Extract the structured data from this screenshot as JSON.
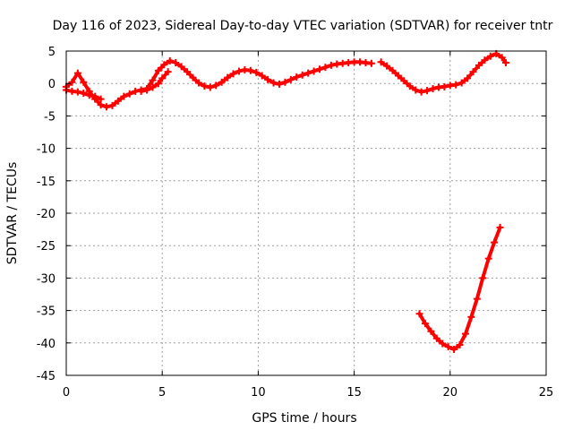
{
  "chart_data": {
    "type": "scatter",
    "title": "Day 116 of 2023, Sidereal Day-to-day VTEC variation (SDTVAR) for receiver tntr",
    "xlabel": "GPS time / hours",
    "ylabel": "SDTVAR / TECUs",
    "xlim": [
      0,
      25
    ],
    "ylim": [
      -45,
      5
    ],
    "x_ticks": [
      0,
      5,
      10,
      15,
      20,
      25
    ],
    "y_ticks": [
      5,
      0,
      -5,
      -10,
      -15,
      -20,
      -25,
      -30,
      -35,
      -40,
      -45
    ],
    "grid": true,
    "legend": "none",
    "series_color": "#ff0000",
    "series": [
      {
        "x": [
          0.0,
          0.3,
          0.6,
          0.9,
          1.2,
          1.5,
          1.8,
          2.1,
          2.4,
          2.7,
          3.0,
          3.3,
          3.6,
          3.9,
          4.2,
          4.5,
          4.8,
          5.1,
          5.4,
          5.7,
          6.0,
          6.3,
          6.6,
          6.9,
          7.2,
          7.5,
          7.8,
          8.1,
          8.4,
          8.7,
          9.0,
          9.3,
          9.6,
          9.9,
          10.2,
          10.5,
          10.8,
          11.1,
          11.4,
          11.7,
          12.0,
          12.3,
          12.6,
          12.9,
          13.2,
          13.5,
          13.8,
          14.1,
          14.4,
          14.7,
          15.0,
          15.3,
          15.6,
          15.9
        ],
        "y": [
          -0.5,
          0.2,
          1.6,
          0.2,
          -1.2,
          -2.4,
          -3.3,
          -3.6,
          -3.4,
          -2.7,
          -2.0,
          -1.6,
          -1.2,
          -1.0,
          -0.8,
          0.5,
          2.0,
          2.9,
          3.5,
          3.2,
          2.6,
          1.8,
          0.9,
          0.1,
          -0.4,
          -0.6,
          -0.3,
          0.2,
          0.9,
          1.5,
          1.9,
          2.1,
          2.0,
          1.7,
          1.2,
          0.6,
          0.1,
          -0.1,
          0.2,
          0.6,
          1.0,
          1.3,
          1.6,
          1.9,
          2.2,
          2.5,
          2.8,
          3.0,
          3.1,
          3.2,
          3.3,
          3.3,
          3.2,
          3.1
        ]
      },
      {
        "x": [
          0.0,
          0.3,
          0.6,
          0.9,
          1.2,
          1.5,
          1.8
        ],
        "y": [
          -1.0,
          -1.2,
          -1.3,
          -1.5,
          -1.8,
          -2.0,
          -2.4
        ]
      },
      {
        "x": [
          3.9,
          4.2,
          4.5,
          4.8,
          5.0,
          5.3
        ],
        "y": [
          -1.2,
          -1.0,
          -0.6,
          0.0,
          0.8,
          1.8
        ]
      },
      {
        "x": [
          16.4,
          16.7,
          17.0,
          17.3,
          17.6,
          17.9,
          18.2,
          18.5,
          18.8,
          19.1,
          19.4,
          19.7,
          20.0,
          20.3,
          20.6,
          20.9,
          21.2,
          21.5,
          21.8,
          22.1,
          22.4,
          22.7,
          22.9
        ],
        "y": [
          3.3,
          2.7,
          2.0,
          1.2,
          0.4,
          -0.4,
          -1.0,
          -1.3,
          -1.1,
          -0.8,
          -0.6,
          -0.5,
          -0.3,
          -0.2,
          0.1,
          0.8,
          1.8,
          2.8,
          3.6,
          4.2,
          4.6,
          4.0,
          3.2
        ]
      },
      {
        "x": [
          18.4,
          18.7,
          19.0,
          19.3,
          19.6,
          19.9,
          20.2,
          20.5,
          20.8,
          21.1,
          21.4,
          21.7,
          22.0,
          22.3,
          22.6
        ],
        "y": [
          -35.5,
          -37.0,
          -38.2,
          -39.3,
          -40.1,
          -40.6,
          -41.0,
          -40.3,
          -38.6,
          -36.0,
          -33.2,
          -30.0,
          -27.0,
          -24.5,
          -22.2
        ]
      }
    ]
  }
}
